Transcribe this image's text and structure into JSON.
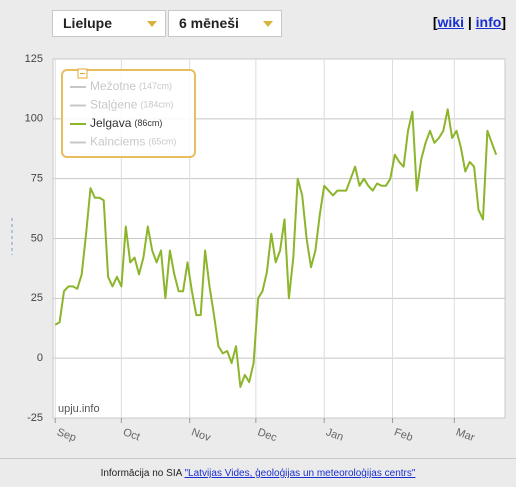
{
  "header": {
    "selects": [
      "Lielupe",
      "6 mēneši"
    ],
    "links": {
      "open": "[",
      "wiki": "wiki",
      "sep": "|",
      "info": "info",
      "close": "]"
    }
  },
  "chart_data": {
    "type": "line",
    "watermark": "upju.info",
    "legend": [
      {
        "name": "Mežotne",
        "note": "(147cm)",
        "color": "#c8c8c8"
      },
      {
        "name": "Staļģene",
        "note": "(184cm)",
        "color": "#c8c8c8"
      },
      {
        "name": "Jelgava",
        "note": "(86cm)",
        "color": "#8cb52b"
      },
      {
        "name": "Kalnciems",
        "note": "(65cm)",
        "color": "#c8c8c8"
      }
    ],
    "series": [
      {
        "name": "Jelgava",
        "color": "#8cb52b",
        "x": [
          0,
          2,
          4,
          6,
          8,
          10,
          12,
          14,
          16,
          18,
          20,
          22,
          24,
          26,
          28,
          30,
          32,
          34,
          36,
          38,
          40,
          42,
          44,
          46,
          48,
          50,
          52,
          54,
          56,
          58,
          60,
          62,
          64,
          66,
          68,
          70,
          72,
          74,
          76,
          78,
          80,
          82,
          84,
          86,
          88,
          90,
          92,
          94,
          96,
          98,
          100,
          102,
          104,
          106,
          108,
          110,
          112,
          114,
          116,
          118,
          120,
          122,
          124,
          126,
          128,
          130,
          132,
          134,
          136,
          138,
          140,
          142,
          144,
          146,
          148,
          150,
          152,
          154,
          156,
          158,
          160,
          162,
          164,
          166,
          168,
          170,
          172,
          174,
          176,
          178,
          180,
          182,
          184,
          186,
          188,
          190,
          192,
          194,
          196,
          198,
          200
        ],
        "values": [
          14,
          15,
          28,
          30,
          30,
          29,
          35,
          52,
          71,
          67,
          67,
          66,
          34,
          30,
          34,
          30,
          55,
          40,
          42,
          35,
          42,
          55,
          45,
          40,
          45,
          25,
          45,
          35,
          28,
          28,
          40,
          28,
          18,
          18,
          45,
          30,
          18,
          5,
          2,
          3,
          -2,
          5,
          -12,
          -7,
          -10,
          -2,
          25,
          28,
          36,
          52,
          40,
          45,
          58,
          25,
          42,
          75,
          68,
          50,
          38,
          45,
          60,
          72,
          70,
          68,
          70,
          70,
          70,
          75,
          80,
          72,
          75,
          72,
          70,
          73,
          72,
          72,
          75,
          85,
          82,
          80,
          95,
          103,
          70,
          83,
          90,
          95,
          90,
          92,
          95,
          104,
          92,
          95,
          88,
          78,
          82,
          80,
          62,
          58,
          95,
          90,
          85
        ]
      }
    ],
    "xlim": [
      -1,
      204
    ],
    "xticks": [
      {
        "value": 0,
        "label": "Sep"
      },
      {
        "value": 30,
        "label": "Oct"
      },
      {
        "value": 61,
        "label": "Nov"
      },
      {
        "value": 91,
        "label": "Dec"
      },
      {
        "value": 122,
        "label": "Jan"
      },
      {
        "value": 153,
        "label": "Feb"
      },
      {
        "value": 181,
        "label": "Mar"
      }
    ],
    "ylim": [
      -25,
      125
    ],
    "yticks": [
      -25,
      0,
      25,
      50,
      75,
      100,
      125
    ],
    "grid": true
  },
  "footer": {
    "text": "Informācija no SIA",
    "link": "\"Latvijas Vides, ģeoloģijas un meteoroloģijas centrs\""
  }
}
